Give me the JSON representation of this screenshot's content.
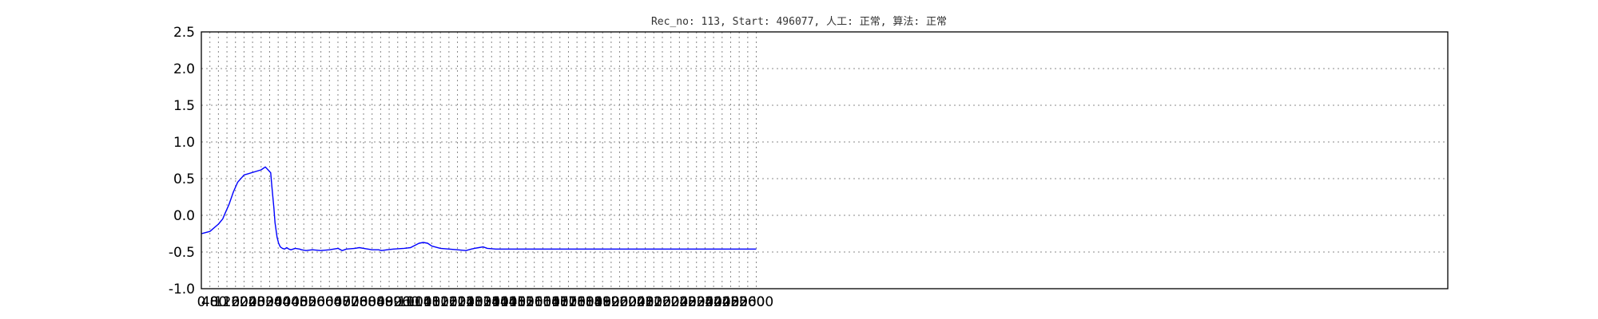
{
  "chart_data": {
    "type": "line",
    "title": "Rec_no: 113, Start: 496077, 人工: 正常, 算法: 正常",
    "xlabel": "",
    "ylabel": "",
    "xlim": [
      0,
      5840
    ],
    "ylim": [
      -1.0,
      2.5
    ],
    "grid": true,
    "xticks": [
      0,
      40,
      80,
      120,
      160,
      200,
      240,
      280,
      320,
      360,
      400,
      440,
      480,
      520,
      560,
      600,
      640,
      680,
      720,
      760,
      800,
      840,
      880,
      920,
      960,
      1000,
      1040,
      1080,
      1120,
      1160,
      1200,
      1240,
      1280,
      1320,
      1360,
      1400,
      1440,
      1480,
      1520,
      1560,
      1600,
      1640,
      1680,
      1720,
      1760,
      1800,
      1840,
      1880,
      1920,
      1960,
      2000,
      2040,
      2080,
      2120,
      2160,
      2200,
      2240,
      2280,
      2320,
      2360,
      2400,
      2440,
      2480,
      2520,
      2560,
      2600
    ],
    "yticks": [
      "2.5",
      "2.0",
      "1.5",
      "1.0",
      "0.5",
      "0.0",
      "-0.5",
      "-1.0"
    ],
    "colors": {
      "normal": "#0000ff",
      "highlight": "#ff0000",
      "frame": "#000000"
    },
    "series": [
      {
        "color": "#0000ff",
        "x": [
          0,
          40,
          80,
          100,
          110,
          130,
          150,
          170,
          200,
          280,
          300,
          325,
          330,
          340,
          345,
          355,
          362,
          370,
          380,
          390,
          395,
          400,
          405,
          410,
          420,
          440,
          460,
          470,
          490,
          520,
          560,
          600,
          640,
          660,
          680,
          720,
          740,
          760,
          780,
          800,
          830,
          845,
          870,
          900,
          950,
          980,
          1000,
          1020,
          1040,
          1060,
          1080,
          1120,
          1160,
          1200,
          1240,
          1265,
          1280,
          1300,
          1320,
          1340,
          1380,
          1420,
          1480,
          1560,
          1600,
          1640,
          1680,
          1720,
          1760,
          1800,
          1830,
          1850,
          1880,
          1890,
          1900,
          1905,
          1910,
          1915,
          1920,
          1925,
          1930,
          1935,
          1940,
          1960,
          2000,
          2040,
          2080,
          2120,
          2160,
          2200,
          2240,
          2280,
          2320,
          2360,
          2400,
          2440,
          2480,
          2520,
          2560,
          2600
        ],
        "y": [
          -0.25,
          -0.22,
          -0.12,
          -0.05,
          0.02,
          0.15,
          0.32,
          0.45,
          0.55,
          0.62,
          0.66,
          0.58,
          0.4,
          0.1,
          -0.1,
          -0.3,
          -0.38,
          -0.43,
          -0.45,
          -0.46,
          -0.45,
          -0.44,
          -0.45,
          -0.46,
          -0.47,
          -0.45,
          -0.46,
          -0.47,
          -0.48,
          -0.47,
          -0.48,
          -0.47,
          -0.45,
          -0.48,
          -0.46,
          -0.45,
          -0.44,
          -0.45,
          -0.46,
          -0.47,
          -0.47,
          -0.48,
          -0.47,
          -0.46,
          -0.45,
          -0.44,
          -0.41,
          -0.38,
          -0.37,
          -0.38,
          -0.42,
          -0.45,
          -0.46,
          -0.47,
          -0.48,
          -0.46,
          -0.45,
          -0.44,
          -0.43,
          -0.45,
          -0.46,
          -0.46,
          -0.46,
          -0.46,
          -0.46,
          -0.46,
          -0.46,
          -0.46,
          -0.46,
          -0.46,
          -0.46,
          -0.46,
          -0.46,
          -0.46,
          -0.46,
          -0.46,
          -0.46,
          -0.46,
          -0.46,
          -0.46,
          -0.46,
          -0.46,
          -0.46,
          -0.46,
          -0.46,
          -0.46,
          -0.46,
          -0.46,
          -0.46,
          -0.46,
          -0.46,
          -0.46,
          -0.46,
          -0.46,
          -0.46,
          -0.46,
          -0.46,
          -0.46,
          -0.46,
          -0.46
        ]
      }
    ]
  }
}
